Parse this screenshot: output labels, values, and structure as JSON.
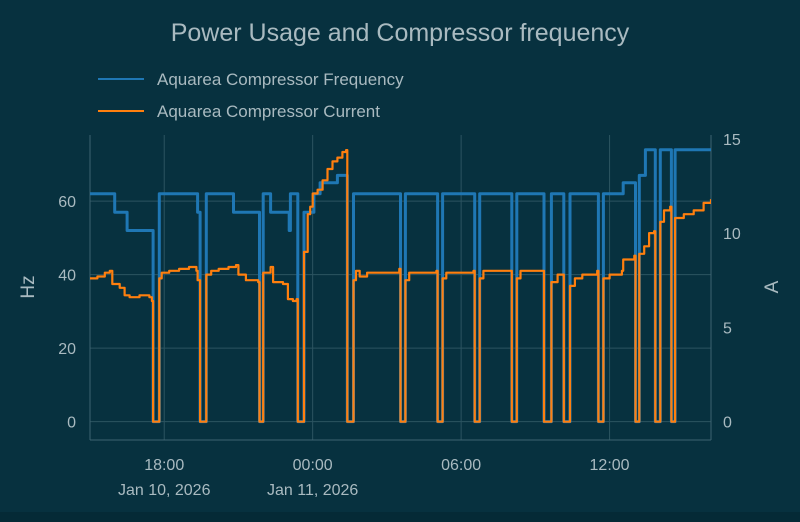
{
  "chart_data": {
    "type": "line",
    "title": "Power Usage and Compressor frequency",
    "x_label": "",
    "x_ticks": [
      "18:00",
      "00:00",
      "06:00",
      "12:00"
    ],
    "x_tick_dates": [
      "Jan 10, 2026",
      "Jan 11, 2026",
      "",
      ""
    ],
    "x_tick_hours": [
      18,
      24,
      30,
      36
    ],
    "x_range_hours": [
      15.0,
      40.1
    ],
    "y_left": {
      "label": "Hz",
      "range": [
        -5,
        78
      ],
      "ticks": [
        0,
        20,
        40,
        60
      ]
    },
    "y_right": {
      "label": "A",
      "range": [
        -0.97,
        15.2
      ],
      "ticks": [
        0,
        5,
        10,
        15
      ]
    },
    "legend": [
      "Aquarea Compressor Frequency",
      "Aquarea Compressor Current"
    ],
    "colors": {
      "frequency": "#1f77b4",
      "current": "#ff7f0e",
      "background": "#07313f"
    },
    "series": [
      {
        "name": "Aquarea Compressor Frequency",
        "axis": "left",
        "points": [
          [
            15.0,
            62
          ],
          [
            16.0,
            62
          ],
          [
            16.0,
            57
          ],
          [
            16.5,
            57
          ],
          [
            16.5,
            52
          ],
          [
            17.5,
            52
          ],
          [
            17.55,
            0
          ],
          [
            17.75,
            0
          ],
          [
            17.8,
            62
          ],
          [
            19.3,
            62
          ],
          [
            19.35,
            57
          ],
          [
            19.45,
            0
          ],
          [
            19.65,
            0
          ],
          [
            19.7,
            62
          ],
          [
            20.8,
            62
          ],
          [
            20.8,
            57
          ],
          [
            21.8,
            57
          ],
          [
            21.85,
            0
          ],
          [
            21.95,
            0
          ],
          [
            22.0,
            62
          ],
          [
            22.3,
            62
          ],
          [
            22.3,
            57
          ],
          [
            23.0,
            57
          ],
          [
            23.05,
            52
          ],
          [
            23.1,
            62
          ],
          [
            23.35,
            62
          ],
          [
            23.4,
            0
          ],
          [
            23.6,
            0
          ],
          [
            23.65,
            57
          ],
          [
            24.0,
            57
          ],
          [
            24.05,
            62
          ],
          [
            24.3,
            62
          ],
          [
            24.3,
            65
          ],
          [
            25.0,
            65
          ],
          [
            25.0,
            67
          ],
          [
            25.35,
            67
          ],
          [
            25.4,
            0
          ],
          [
            25.6,
            0
          ],
          [
            25.65,
            62
          ],
          [
            27.5,
            62
          ],
          [
            27.55,
            0
          ],
          [
            27.7,
            0
          ],
          [
            27.75,
            62
          ],
          [
            29.0,
            62
          ],
          [
            29.05,
            0
          ],
          [
            29.2,
            0
          ],
          [
            29.25,
            62
          ],
          [
            30.5,
            62
          ],
          [
            30.55,
            0
          ],
          [
            30.7,
            0
          ],
          [
            30.75,
            62
          ],
          [
            32.0,
            62
          ],
          [
            32.05,
            0
          ],
          [
            32.2,
            0
          ],
          [
            32.25,
            62
          ],
          [
            33.3,
            62
          ],
          [
            33.35,
            0
          ],
          [
            33.6,
            0
          ],
          [
            33.65,
            62
          ],
          [
            34.1,
            62
          ],
          [
            34.15,
            0
          ],
          [
            34.35,
            0
          ],
          [
            34.4,
            62
          ],
          [
            35.5,
            62
          ],
          [
            35.55,
            0
          ],
          [
            35.7,
            0
          ],
          [
            35.75,
            62
          ],
          [
            36.5,
            62
          ],
          [
            36.55,
            65
          ],
          [
            37.0,
            65
          ],
          [
            37.05,
            0
          ],
          [
            37.15,
            0
          ],
          [
            37.2,
            67
          ],
          [
            37.4,
            67
          ],
          [
            37.45,
            74
          ],
          [
            37.8,
            74
          ],
          [
            37.85,
            0
          ],
          [
            38.0,
            0
          ],
          [
            38.05,
            74
          ],
          [
            38.45,
            74
          ],
          [
            38.5,
            0
          ],
          [
            38.6,
            0
          ],
          [
            38.65,
            74
          ],
          [
            40.1,
            74
          ]
        ]
      },
      {
        "name": "Aquarea Compressor Current",
        "axis": "right",
        "points": [
          [
            15.0,
            7.6
          ],
          [
            15.3,
            7.7
          ],
          [
            15.6,
            7.9
          ],
          [
            15.8,
            8.0
          ],
          [
            15.9,
            7.3
          ],
          [
            16.2,
            7.1
          ],
          [
            16.4,
            6.7
          ],
          [
            16.6,
            6.6
          ],
          [
            17.0,
            6.7
          ],
          [
            17.4,
            6.6
          ],
          [
            17.5,
            6.4
          ],
          [
            17.55,
            0
          ],
          [
            17.75,
            0
          ],
          [
            17.8,
            7.6
          ],
          [
            17.9,
            7.9
          ],
          [
            18.2,
            8.0
          ],
          [
            18.6,
            8.1
          ],
          [
            19.0,
            8.2
          ],
          [
            19.3,
            8.0
          ],
          [
            19.35,
            7.5
          ],
          [
            19.45,
            0
          ],
          [
            19.65,
            0
          ],
          [
            19.7,
            7.8
          ],
          [
            19.9,
            8.0
          ],
          [
            20.2,
            8.1
          ],
          [
            20.6,
            8.2
          ],
          [
            20.9,
            8.3
          ],
          [
            21.0,
            7.8
          ],
          [
            21.3,
            7.5
          ],
          [
            21.8,
            7.4
          ],
          [
            21.85,
            0
          ],
          [
            21.95,
            0
          ],
          [
            22.0,
            7.9
          ],
          [
            22.3,
            8.2
          ],
          [
            22.4,
            7.4
          ],
          [
            22.8,
            7.3
          ],
          [
            23.0,
            6.5
          ],
          [
            23.2,
            6.4
          ],
          [
            23.35,
            6.5
          ],
          [
            23.4,
            0
          ],
          [
            23.6,
            0
          ],
          [
            23.65,
            9.0
          ],
          [
            23.8,
            11.0
          ],
          [
            23.9,
            11.4
          ],
          [
            24.0,
            12.1
          ],
          [
            24.2,
            12.3
          ],
          [
            24.4,
            12.8
          ],
          [
            24.6,
            13.4
          ],
          [
            24.8,
            13.8
          ],
          [
            25.0,
            14.0
          ],
          [
            25.2,
            14.3
          ],
          [
            25.35,
            14.4
          ],
          [
            25.4,
            0
          ],
          [
            25.6,
            0
          ],
          [
            25.65,
            7.5
          ],
          [
            25.75,
            8.0
          ],
          [
            25.9,
            7.7
          ],
          [
            26.2,
            7.9
          ],
          [
            27.5,
            8.1
          ],
          [
            27.55,
            0
          ],
          [
            27.7,
            0
          ],
          [
            27.75,
            7.5
          ],
          [
            27.9,
            7.9
          ],
          [
            29.0,
            8.0
          ],
          [
            29.05,
            0
          ],
          [
            29.2,
            0
          ],
          [
            29.25,
            7.6
          ],
          [
            29.4,
            7.9
          ],
          [
            30.5,
            8.0
          ],
          [
            30.55,
            0
          ],
          [
            30.7,
            0
          ],
          [
            30.75,
            7.6
          ],
          [
            30.9,
            8.0
          ],
          [
            32.0,
            8.0
          ],
          [
            32.05,
            0
          ],
          [
            32.2,
            0
          ],
          [
            32.25,
            7.6
          ],
          [
            32.4,
            8.0
          ],
          [
            33.3,
            8.0
          ],
          [
            33.35,
            0
          ],
          [
            33.6,
            0
          ],
          [
            33.65,
            7.4
          ],
          [
            33.9,
            7.8
          ],
          [
            34.1,
            7.8
          ],
          [
            34.15,
            0
          ],
          [
            34.35,
            0
          ],
          [
            34.4,
            7.2
          ],
          [
            34.6,
            7.6
          ],
          [
            34.9,
            7.8
          ],
          [
            35.5,
            8.0
          ],
          [
            35.55,
            0
          ],
          [
            35.7,
            0
          ],
          [
            35.75,
            7.6
          ],
          [
            36.0,
            7.8
          ],
          [
            36.5,
            8.0
          ],
          [
            36.55,
            8.6
          ],
          [
            37.0,
            8.8
          ],
          [
            37.05,
            0
          ],
          [
            37.15,
            0
          ],
          [
            37.2,
            8.9
          ],
          [
            37.4,
            9.3
          ],
          [
            37.6,
            10.0
          ],
          [
            37.8,
            10.1
          ],
          [
            37.85,
            0
          ],
          [
            38.0,
            0
          ],
          [
            38.05,
            10.6
          ],
          [
            38.2,
            11.2
          ],
          [
            38.45,
            11.4
          ],
          [
            38.5,
            0
          ],
          [
            38.6,
            0
          ],
          [
            38.65,
            10.8
          ],
          [
            39.0,
            11.0
          ],
          [
            39.4,
            11.2
          ],
          [
            39.8,
            11.6
          ],
          [
            40.1,
            11.8
          ]
        ]
      }
    ]
  }
}
